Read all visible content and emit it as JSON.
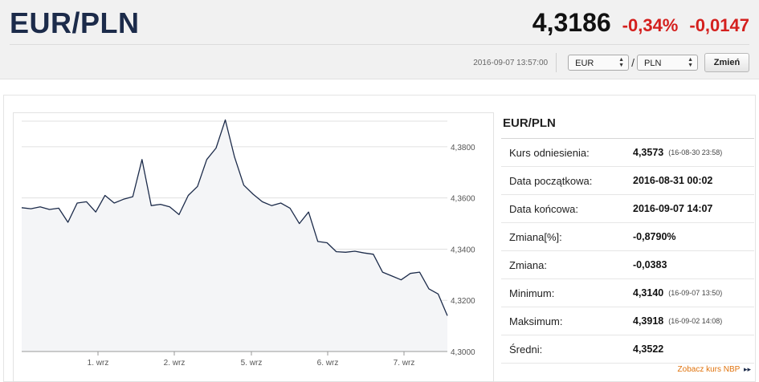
{
  "header": {
    "title": "EUR/PLN",
    "rate": "4,3186",
    "change_percent": "-0,34%",
    "change_value": "-0,0147",
    "timestamp": "2016-09-07 13:57:00",
    "from_currency": "EUR",
    "to_currency": "PLN",
    "separator": "/",
    "change_button": "Zmień"
  },
  "colors": {
    "title": "#1c2b4a",
    "negative": "#d4201e",
    "line": "#1c2b4a",
    "area_fill": "#f4f5f7",
    "link": "#e0730d"
  },
  "chart_data": {
    "type": "area",
    "title": "",
    "xlabel": "",
    "ylabel": "",
    "x_ticks": [
      "1. wrz",
      "2. wrz",
      "5. wrz",
      "6. wrz",
      "7. wrz"
    ],
    "y_ticks": [
      "4,3800",
      "4,3600",
      "4,3400",
      "4,3200",
      "4,3000"
    ],
    "ylim": [
      4.3,
      4.39
    ],
    "grid": true,
    "series": [
      {
        "name": "",
        "x": [
          0,
          0.5,
          1,
          1.5,
          2,
          2.5,
          3,
          3.5,
          4,
          4.5,
          5,
          5.5,
          6,
          6.5,
          7,
          7.5,
          8,
          8.5,
          9,
          9.5,
          10,
          10.5,
          11,
          11.5,
          12,
          12.5,
          13,
          13.5,
          14,
          14.5,
          15,
          15.5,
          16,
          16.5,
          17,
          17.5,
          18,
          18.5,
          19,
          19.5,
          20,
          20.5,
          21,
          21.5,
          22,
          22.5,
          23
        ],
        "values": [
          4.3562,
          4.3558,
          4.3565,
          4.3555,
          4.356,
          4.3505,
          4.358,
          4.3585,
          4.3545,
          4.361,
          4.358,
          4.3595,
          4.3605,
          4.375,
          4.357,
          4.3575,
          4.3565,
          4.3535,
          4.361,
          4.3645,
          4.375,
          4.3795,
          4.3905,
          4.376,
          4.365,
          4.3615,
          4.3585,
          4.357,
          4.358,
          4.356,
          4.35,
          4.3545,
          4.343,
          4.3425,
          4.339,
          4.3388,
          4.3392,
          4.3385,
          4.338,
          4.331,
          4.3295,
          4.328,
          4.3305,
          4.331,
          4.3245,
          4.3225,
          4.314
        ]
      }
    ]
  },
  "stats": {
    "title": "EUR/PLN",
    "rows": [
      {
        "label": "Kurs odniesienia:",
        "value": "4,3573",
        "time": "(16-08-30 23:58)"
      },
      {
        "label": "Data początkowa:",
        "value": "2016-08-31 00:02",
        "time": ""
      },
      {
        "label": "Data końcowa:",
        "value": "2016-09-07 14:07",
        "time": ""
      },
      {
        "label": "Zmiana[%]:",
        "value": "-0,8790%",
        "time": ""
      },
      {
        "label": "Zmiana:",
        "value": "-0,0383",
        "time": ""
      },
      {
        "label": "Minimum:",
        "value": "4,3140",
        "time": "(16-09-07 13:50)"
      },
      {
        "label": "Maksimum:",
        "value": "4,3918",
        "time": "(16-09-02 14:08)"
      },
      {
        "label": "Średni:",
        "value": "4,3522",
        "time": ""
      }
    ],
    "nbp_link": "Zobacz kurs NBP",
    "nbp_arrow_icon": "double-arrow-right-icon"
  }
}
